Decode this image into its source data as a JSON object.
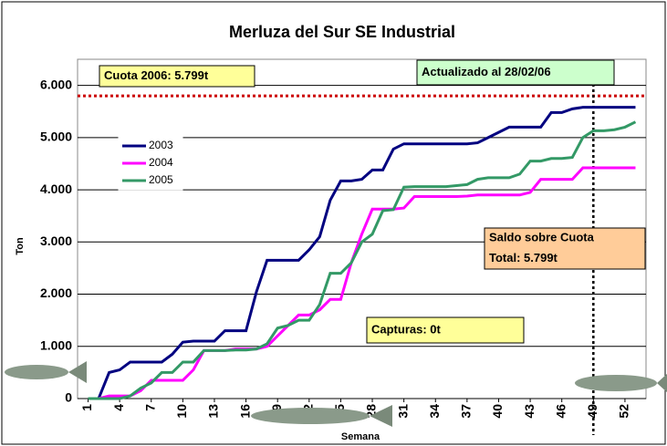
{
  "chart_data": {
    "type": "line",
    "title": "Merluza del Sur SE Industrial",
    "ylabel": "Ton",
    "xlabel": "Semana",
    "x": [
      1,
      2,
      3,
      4,
      5,
      6,
      7,
      8,
      9,
      10,
      11,
      12,
      13,
      14,
      15,
      16,
      17,
      18,
      19,
      20,
      21,
      22,
      23,
      24,
      25,
      26,
      27,
      28,
      29,
      30,
      31,
      32,
      33,
      34,
      35,
      36,
      37,
      38,
      39,
      40,
      41,
      42,
      43,
      44,
      45,
      46,
      47,
      48,
      49,
      50,
      51,
      52,
      53
    ],
    "xlim": [
      0,
      54
    ],
    "xticks": [
      1,
      4,
      7,
      10,
      13,
      16,
      19,
      22,
      25,
      28,
      31,
      34,
      37,
      40,
      43,
      46,
      49,
      52
    ],
    "ylim": [
      0,
      6500
    ],
    "yticks": [
      0,
      {
        "value": 1000,
        "label": "1.000"
      },
      {
        "value": 2000,
        "label": "2.000"
      },
      {
        "value": 3000,
        "label": "3.000"
      },
      {
        "value": 4000,
        "label": "4.000"
      },
      {
        "value": 5000,
        "label": "5.000"
      },
      {
        "value": 6000,
        "label": "6.000"
      }
    ],
    "grid": true,
    "legend": "upper left",
    "series": [
      {
        "name": "2003",
        "color": "#000080",
        "values": [
          0,
          0,
          500,
          550,
          700,
          700,
          700,
          700,
          850,
          1080,
          1100,
          1100,
          1100,
          1300,
          1300,
          1300,
          2050,
          2650,
          2650,
          2650,
          2650,
          2850,
          3100,
          3800,
          4170,
          4170,
          4200,
          4380,
          4380,
          4780,
          4880,
          4880,
          4880,
          4880,
          4880,
          4880,
          4880,
          4900,
          5000,
          5100,
          5200,
          5200,
          5200,
          5200,
          5480,
          5480,
          5550,
          5580,
          5580,
          5580,
          5580,
          5580,
          5580
        ]
      },
      {
        "name": "2004",
        "color": "#ff00ff",
        "values": [
          0,
          0,
          50,
          50,
          50,
          150,
          350,
          350,
          350,
          350,
          550,
          920,
          920,
          920,
          950,
          950,
          950,
          1000,
          1200,
          1400,
          1600,
          1600,
          1700,
          1900,
          1900,
          2600,
          3150,
          3630,
          3630,
          3630,
          3650,
          3870,
          3870,
          3870,
          3870,
          3870,
          3880,
          3900,
          3900,
          3900,
          3900,
          3900,
          3950,
          4200,
          4200,
          4200,
          4200,
          4420,
          4420,
          4420,
          4420,
          4420,
          4420
        ]
      },
      {
        "name": "2005",
        "color": "#339966",
        "values": [
          0,
          0,
          0,
          0,
          50,
          200,
          300,
          500,
          500,
          700,
          700,
          920,
          920,
          920,
          930,
          930,
          950,
          1050,
          1350,
          1400,
          1500,
          1500,
          1800,
          2400,
          2400,
          2600,
          3000,
          3150,
          3600,
          3620,
          4050,
          4060,
          4060,
          4060,
          4060,
          4080,
          4100,
          4200,
          4230,
          4230,
          4230,
          4300,
          4550,
          4550,
          4600,
          4600,
          4620,
          5000,
          5130,
          5130,
          5150,
          5200,
          5300
        ]
      }
    ],
    "quota": {
      "value": 5799,
      "color": "#cc0000"
    },
    "current_week": 49,
    "annotations": {
      "quota_label": "Cuota 2006: 5.799t",
      "updated": "Actualizado al 28/02/06",
      "balance_line1": "Saldo sobre Cuota",
      "balance_line2": "Total: 5.799t",
      "catches": "Capturas: 0t"
    }
  }
}
